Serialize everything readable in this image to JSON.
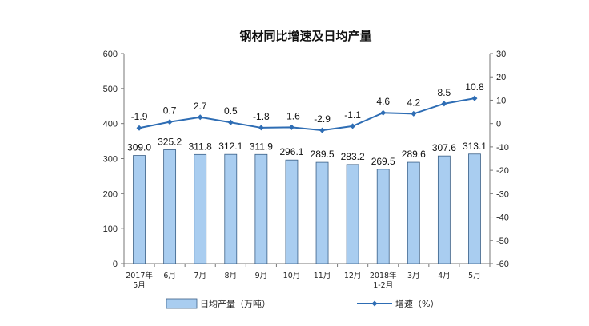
{
  "chart_data": {
    "type": "bar+line",
    "title": "钢材同比增速及日均产量",
    "categories": [
      [
        "2017年",
        "5月"
      ],
      [
        "6月"
      ],
      [
        "7月"
      ],
      [
        "8月"
      ],
      [
        "9月"
      ],
      [
        "10月"
      ],
      [
        "11月"
      ],
      [
        "12月"
      ],
      [
        "2018年",
        "1-2月"
      ],
      [
        "3月"
      ],
      [
        "4月"
      ],
      [
        "5月"
      ]
    ],
    "series": [
      {
        "name": "日均产量（万吨）",
        "type": "bar",
        "axis": "left",
        "values": [
          309.0,
          325.2,
          311.8,
          312.1,
          311.9,
          296.1,
          289.5,
          283.2,
          269.5,
          289.6,
          307.6,
          313.1
        ],
        "labels": [
          "309.0",
          "325.2",
          "311.8",
          "312.1",
          "311.9",
          "296.1",
          "289.5",
          "283.2",
          "269.5",
          "289.6",
          "307.6",
          "313.1"
        ]
      },
      {
        "name": "增速（%）",
        "type": "line",
        "axis": "right",
        "values": [
          -1.9,
          0.7,
          2.7,
          0.5,
          -1.8,
          -1.6,
          -2.9,
          -1.1,
          4.6,
          4.2,
          8.5,
          10.8
        ],
        "labels": [
          "-1.9",
          "0.7",
          "2.7",
          "0.5",
          "-1.8",
          "-1.6",
          "-2.9",
          "-1.1",
          "4.6",
          "4.2",
          "8.5",
          "10.8"
        ]
      }
    ],
    "left_axis": {
      "min": 0,
      "max": 600,
      "ticks": [
        0,
        100,
        200,
        300,
        400,
        500,
        600
      ]
    },
    "right_axis": {
      "min": -60,
      "max": 30,
      "ticks": [
        -60,
        -50,
        -40,
        -30,
        -20,
        -10,
        0,
        10,
        20,
        30
      ]
    },
    "grid": false,
    "legend_position": "bottom",
    "colors": {
      "bar_fill": "#a9cdf0",
      "bar_stroke": "#3a5f86",
      "line": "#2e6db4"
    }
  }
}
